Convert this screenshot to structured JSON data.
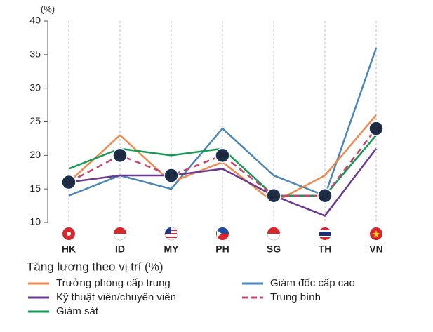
{
  "chart_data": {
    "type": "line",
    "y_unit": "(%)",
    "categories": [
      "HK",
      "ID",
      "MY",
      "PH",
      "SG",
      "TH",
      "VN"
    ],
    "ylim": [
      10,
      40
    ],
    "yticks": [
      10,
      15,
      20,
      25,
      30,
      35,
      40
    ],
    "grid": true,
    "legend_title": "Tăng lương theo vị trí (%)",
    "series": [
      {
        "name": "Trưởng phòng cấp trung",
        "color": "#ee8a4e",
        "line_style": "solid",
        "values": [
          16,
          23,
          16,
          19,
          13,
          17,
          26
        ]
      },
      {
        "name": "Kỹ thuật viên/chuyên viên",
        "color": "#6a3a91",
        "line_style": "solid",
        "values": [
          16,
          17,
          17,
          18,
          14,
          11,
          21
        ]
      },
      {
        "name": "Giám sát",
        "color": "#149a52",
        "line_style": "solid",
        "values": [
          18,
          21,
          20,
          21,
          14,
          14,
          23
        ]
      },
      {
        "name": "Giám đốc cấp cao",
        "color": "#4a86b8",
        "line_style": "solid",
        "values": [
          14,
          17,
          15,
          24,
          17,
          14,
          36
        ]
      },
      {
        "name": "Trung bình",
        "color": "#c8446f",
        "line_style": "dashed",
        "labeled": true,
        "values": [
          16,
          20,
          17,
          20,
          14,
          14,
          24
        ]
      }
    ]
  }
}
